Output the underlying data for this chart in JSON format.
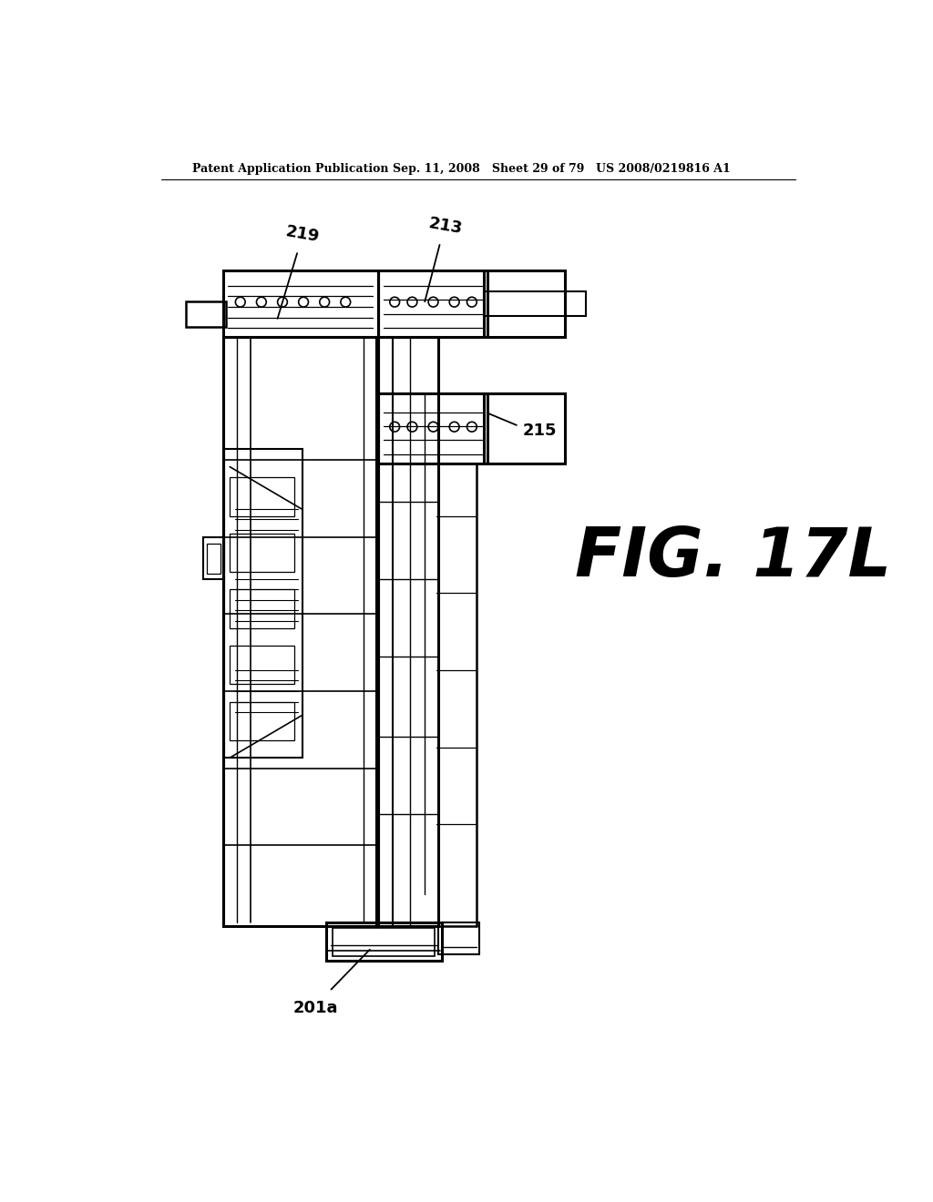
{
  "header_left": "Patent Application Publication",
  "header_mid": "Sep. 11, 2008   Sheet 29 of 79",
  "header_right": "US 2008/0219816 A1",
  "fig_label": "FIG. 17L",
  "label_219": "219",
  "label_213": "213",
  "label_215": "215",
  "label_201a": "201a",
  "bg": "#ffffff",
  "lc": "#000000"
}
